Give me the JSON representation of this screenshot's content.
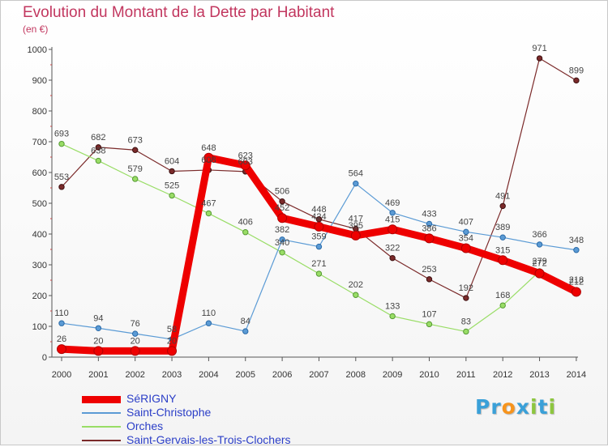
{
  "chart_data": {
    "type": "line",
    "title": "Evolution du Montant de la Dette par Habitant",
    "subtitle": "(en €)",
    "categories": [
      "2000",
      "2001",
      "2002",
      "2003",
      "2004",
      "2005",
      "2006",
      "2007",
      "2008",
      "2009",
      "2010",
      "2011",
      "2012",
      "2013",
      "2014"
    ],
    "ylim": [
      0,
      1000
    ],
    "yticks": [
      "0",
      "100",
      "200",
      "300",
      "400",
      "500",
      "600",
      "700",
      "800",
      "900",
      "1000"
    ],
    "grid": false,
    "legend_position": "bottom-left",
    "series": [
      {
        "name": "SéRIGNY",
        "color": "#ee0000",
        "values": [
          26,
          20,
          20,
          20,
          648,
          623,
          452,
          424,
          395,
          415,
          386,
          354,
          315,
          272,
          212
        ],
        "labels": [
          "26",
          "20",
          "20",
          "20",
          "648",
          "623",
          "452",
          "424",
          "395",
          "415",
          "386",
          "354",
          "315",
          "272",
          "212"
        ]
      },
      {
        "name": "Saint-Christophe",
        "color": "#5b9bd5",
        "values": [
          110,
          94,
          76,
          58,
          110,
          84,
          382,
          359,
          564,
          469,
          433,
          407,
          389,
          366,
          348
        ],
        "labels": [
          "110",
          "94",
          "76",
          "58",
          "110",
          "84",
          "382",
          "359",
          "564",
          "469",
          "433",
          "407",
          "389",
          "366",
          "348"
        ]
      },
      {
        "name": "Orches",
        "color": "#99dd66",
        "values": [
          693,
          638,
          579,
          525,
          467,
          406,
          340,
          271,
          202,
          133,
          107,
          83,
          168,
          279,
          218
        ],
        "labels": [
          "693",
          "638",
          "579",
          "525",
          "467",
          "406",
          "340",
          "271",
          "202",
          "133",
          "107",
          "83",
          "168",
          "279",
          "218"
        ]
      },
      {
        "name": "Saint-Gervais-les-Trois-Clochers",
        "color": "#7b2a2a",
        "values": [
          553,
          682,
          673,
          604,
          608,
          603,
          506,
          448,
          417,
          322,
          253,
          192,
          491,
          971,
          899
        ],
        "labels": [
          "553",
          "682",
          "673",
          "604",
          "608",
          "603",
          "506",
          "448",
          "417",
          "322",
          "253",
          "192",
          "491",
          "971",
          "899"
        ]
      }
    ]
  },
  "brand": {
    "letters": [
      "P",
      "r",
      "o",
      "x",
      "i",
      "t",
      "i"
    ],
    "colors": [
      "#3aa0d8",
      "#3aa0d8",
      "#f7941d",
      "#3aa0d8",
      "#8dc63f",
      "#3aa0d8",
      "#8dc63f"
    ]
  }
}
